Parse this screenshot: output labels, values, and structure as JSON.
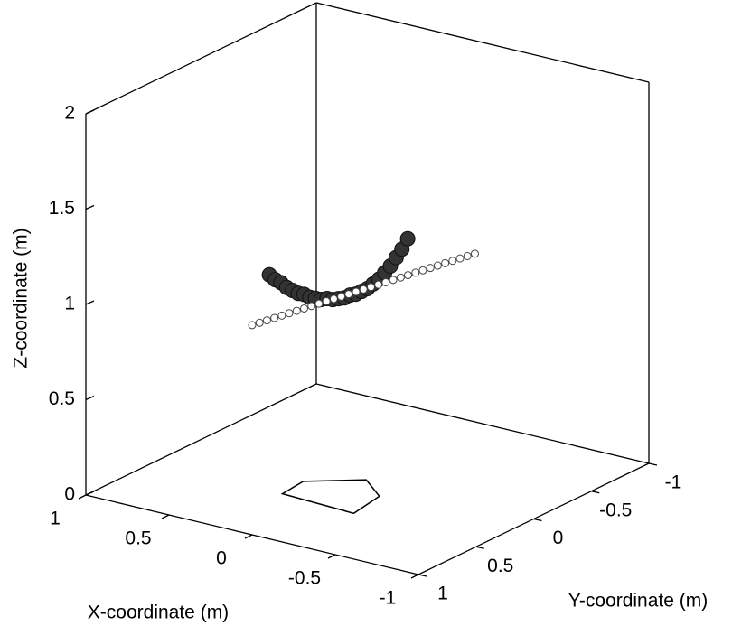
{
  "chart_data": {
    "type": "scatter3d",
    "xlabel": "X-coordinate (m)",
    "ylabel": "Y-coordinate (m)",
    "zlabel": "Z-coordinate (m)",
    "xlim": [
      -1,
      1
    ],
    "ylim": [
      -1,
      1
    ],
    "zlim": [
      0,
      2
    ],
    "xticks": [
      -1,
      -0.5,
      0,
      0.5,
      1
    ],
    "yticks": [
      -1,
      -0.5,
      0,
      0.5,
      1
    ],
    "zticks": [
      0,
      0.5,
      1,
      1.5,
      2
    ],
    "series": [
      {
        "color": "#333333",
        "x": [
          0,
          0,
          0,
          0,
          0,
          0,
          0,
          0,
          0,
          0,
          0,
          0,
          0,
          0,
          0,
          0,
          0,
          0,
          0,
          0,
          0,
          0,
          0,
          0,
          0
        ],
        "y": [
          0.85,
          0.8,
          0.75,
          0.7,
          0.65,
          0.6,
          0.55,
          0.5,
          0.45,
          0.4,
          0.35,
          0.3,
          0.25,
          0.2,
          0.15,
          0.1,
          0.05,
          0,
          -0.05,
          -0.1,
          -0.15,
          -0.2,
          -0.25,
          -0.3,
          -0.35
        ],
        "z": [
          1.32,
          1.28,
          1.25,
          1.21,
          1.18,
          1.15,
          1.13,
          1.1,
          1.08,
          1.06,
          1.05,
          1.03,
          1.02,
          1.01,
          1.01,
          1,
          1,
          1,
          1.01,
          1.02,
          1.04,
          1.06,
          1.09,
          1.12,
          1.16
        ]
      },
      {
        "color": "#ffffff",
        "x": [
          0,
          -0.01,
          -0.02,
          -0.03,
          -0.04,
          -0.05,
          -0.06,
          -0.07,
          -0.08,
          -0.09,
          -0.1,
          -0.11,
          -0.12,
          -0.13,
          -0.14,
          -0.15,
          -0.16,
          -0.17,
          -0.18,
          -0.19,
          -0.2,
          -0.21,
          -0.22,
          -0.23,
          -0.24,
          -0.25,
          -0.26,
          -0.27,
          -0.28,
          -0.29,
          -0.3
        ],
        "y": [
          1,
          0.95,
          0.9,
          0.85,
          0.8,
          0.75,
          0.7,
          0.65,
          0.6,
          0.55,
          0.5,
          0.45,
          0.4,
          0.35,
          0.3,
          0.25,
          0.2,
          0.15,
          0.1,
          0.05,
          0,
          -0.05,
          -0.1,
          -0.15,
          -0.2,
          -0.25,
          -0.3,
          -0.35,
          -0.4,
          -0.45,
          -0.5
        ],
        "z": [
          1.1,
          1.1,
          1.1,
          1.1,
          1.1,
          1.1,
          1.1,
          1.1,
          1.1,
          1.1,
          1.1,
          1.1,
          1.1,
          1.1,
          1.1,
          1.1,
          1.1,
          1.1,
          1.1,
          1.1,
          1.1,
          1.1,
          1.1,
          1.1,
          1.1,
          1.1,
          1.1,
          1.1,
          1.1,
          1.1,
          1.1
        ]
      }
    ],
    "polygon": {
      "x": [
        0.22,
        0.24,
        0,
        -0.19,
        -0.23
      ],
      "y": [
        0.42,
        0.21,
        0.01,
        0.17,
        0.45
      ]
    }
  }
}
